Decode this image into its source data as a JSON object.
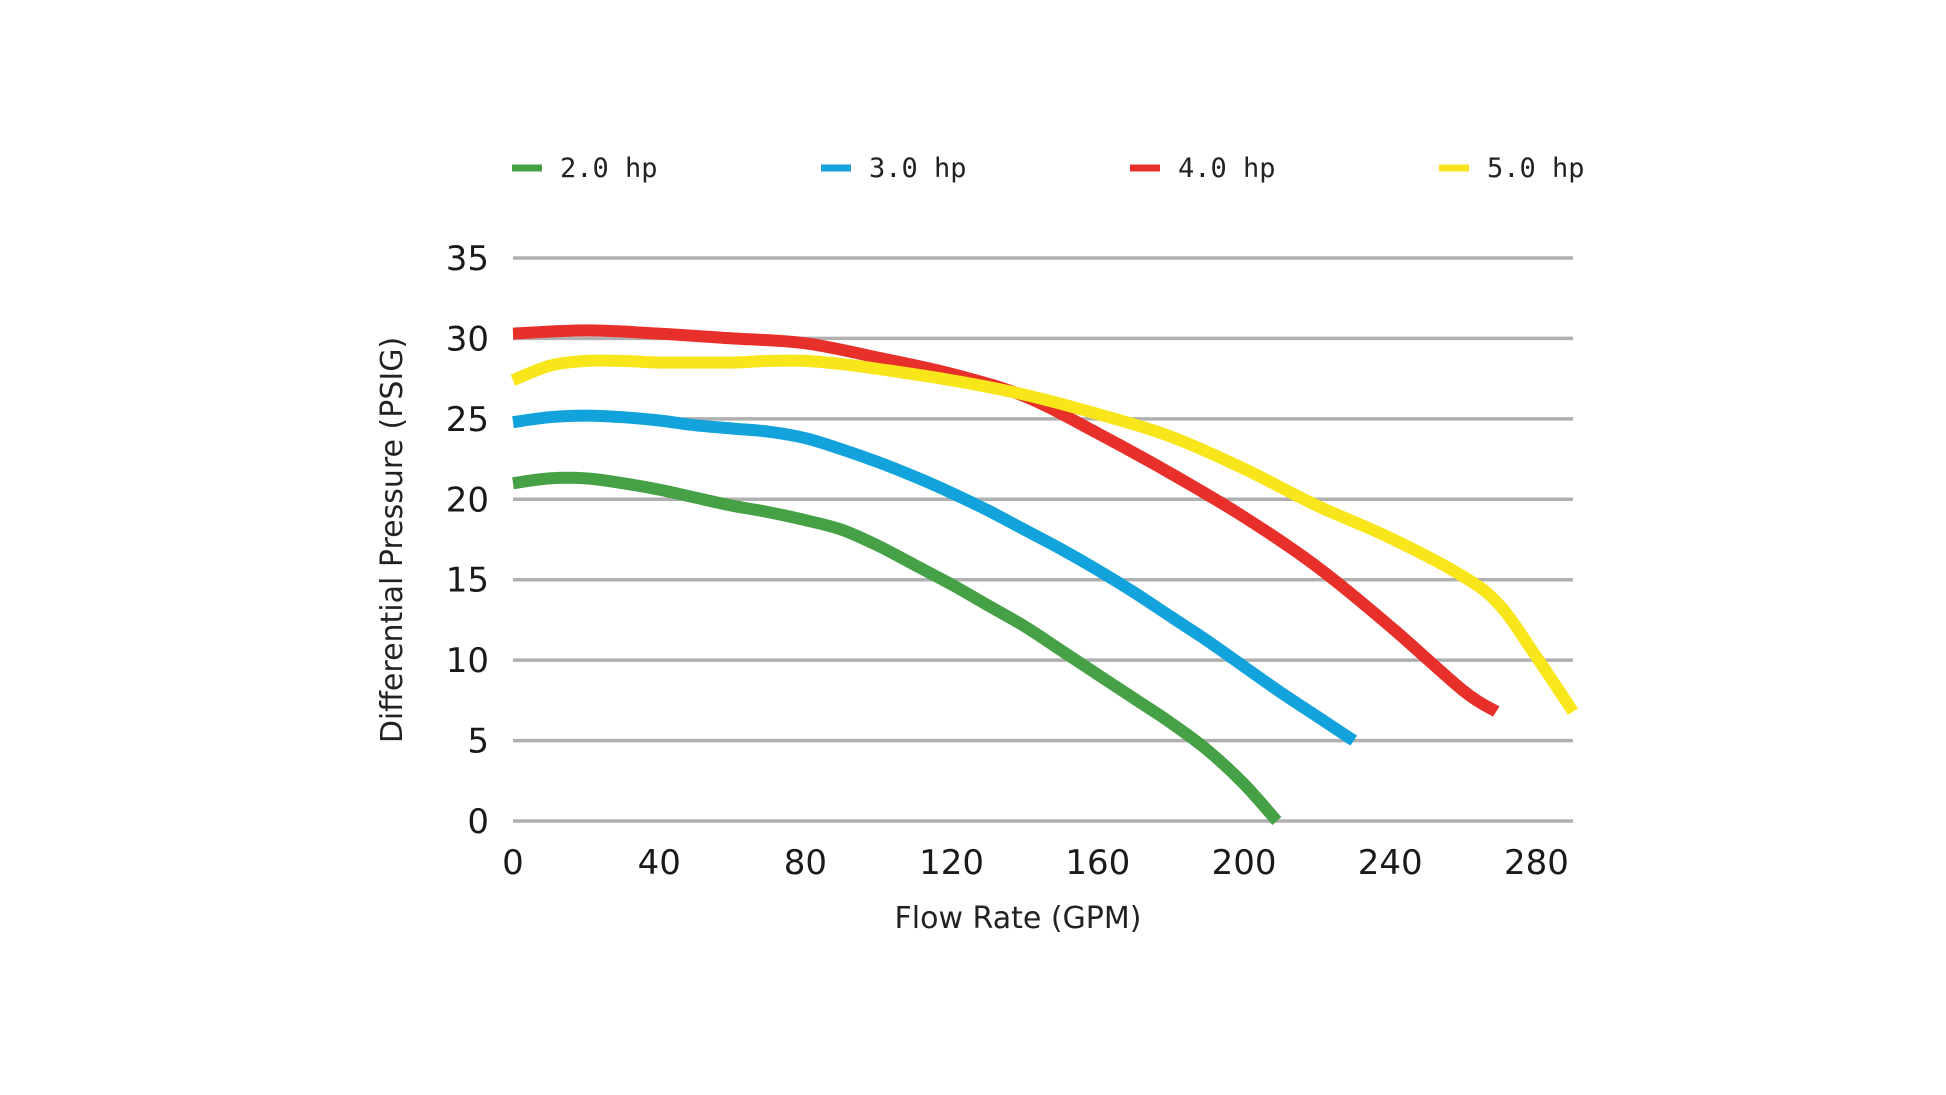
{
  "chart_data": {
    "type": "line",
    "title": "",
    "xlabel": "Flow Rate (GPM)",
    "ylabel": "Differential Pressure (PSIG)",
    "xlim": [
      0,
      290
    ],
    "ylim": [
      0,
      35
    ],
    "xticks": [
      0,
      40,
      80,
      120,
      160,
      200,
      240,
      280
    ],
    "yticks": [
      0,
      5,
      10,
      15,
      20,
      25,
      30,
      35
    ],
    "grid": "horizontal",
    "legend_position": "top",
    "series": [
      {
        "name": "2.0 hp",
        "color": "#46a046",
        "x": [
          0,
          10,
          20,
          30,
          40,
          50,
          60,
          70,
          80,
          90,
          100,
          110,
          120,
          130,
          140,
          150,
          160,
          170,
          180,
          190,
          200,
          209
        ],
        "y": [
          21,
          21.3,
          21.3,
          21,
          20.6,
          20.1,
          19.6,
          19.2,
          18.7,
          18.1,
          17.1,
          15.9,
          14.7,
          13.4,
          12.1,
          10.6,
          9.1,
          7.6,
          6.1,
          4.4,
          2.3,
          0
        ]
      },
      {
        "name": "3.0 hp",
        "color": "#12a3dc",
        "x": [
          0,
          10,
          20,
          30,
          40,
          50,
          60,
          70,
          80,
          90,
          100,
          110,
          120,
          130,
          140,
          150,
          160,
          170,
          180,
          190,
          200,
          210,
          220,
          230
        ],
        "y": [
          24.8,
          25.1,
          25.2,
          25.1,
          24.9,
          24.6,
          24.4,
          24.2,
          23.8,
          23.1,
          22.3,
          21.4,
          20.4,
          19.3,
          18.1,
          16.9,
          15.6,
          14.2,
          12.7,
          11.2,
          9.6,
          8,
          6.5,
          5
        ]
      },
      {
        "name": "4.0 hp",
        "color": "#e8302a",
        "x": [
          0,
          20,
          40,
          60,
          80,
          100,
          120,
          140,
          160,
          180,
          200,
          220,
          240,
          260,
          269
        ],
        "y": [
          30.3,
          30.5,
          30.3,
          30,
          29.7,
          28.8,
          27.8,
          26.4,
          24.1,
          21.6,
          18.9,
          15.8,
          12.1,
          8.1,
          6.8
        ]
      },
      {
        "name": "5.0 hp",
        "color": "#f8e61a",
        "x": [
          0,
          10,
          20,
          30,
          40,
          50,
          60,
          70,
          80,
          90,
          100,
          120,
          140,
          160,
          180,
          200,
          220,
          240,
          260,
          270,
          280,
          290
        ],
        "y": [
          27.4,
          28.3,
          28.6,
          28.6,
          28.5,
          28.5,
          28.5,
          28.6,
          28.6,
          28.4,
          28.1,
          27.4,
          26.5,
          25.3,
          23.9,
          21.9,
          19.6,
          17.6,
          15.2,
          13.4,
          10.2,
          6.8
        ]
      }
    ]
  }
}
